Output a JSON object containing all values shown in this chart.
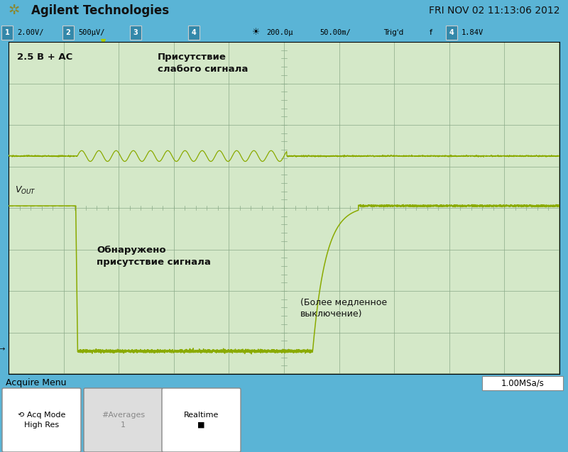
{
  "fig_width": 8.0,
  "fig_height": 6.37,
  "dpi": 100,
  "bg_outer": "#5ab4d6",
  "screen_bg": "#c8d8b8",
  "grid_color": "#8aaa88",
  "header_text_color": "#000000",
  "title_left": "Agilent Technologies",
  "title_right": "FRI NOV 02 11:13:06 2012",
  "footer_left": "Acquire Menu",
  "footer_right": "1.00MSa/s",
  "signal_color": "#8aaa00",
  "signal_color2": "#9ab010",
  "label1": "2.5 В + AC",
  "label2": "Присутствие\nслабого сигнала",
  "label3": "Обнаружено\nприсутствие сигнала",
  "label4": "(Более медленное\nвыключение)",
  "nx_divs": 10,
  "ny_divs": 8,
  "status_text": "1  2.00V/  2  500μV/  3           4        ☀  200.0μ  50.00m/   Trig'd  f  4  1.84V"
}
